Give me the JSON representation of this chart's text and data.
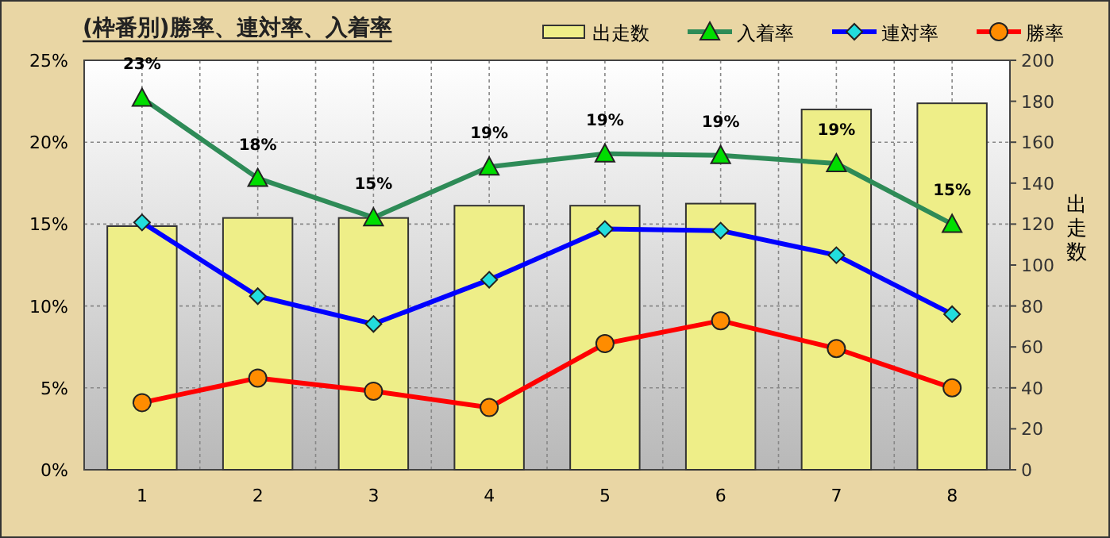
{
  "chart_data": {
    "type": "line",
    "title": "(枠番別)勝率、連対率、入着率",
    "y2label": "出走数",
    "categories": [
      "1",
      "2",
      "3",
      "4",
      "5",
      "6",
      "7",
      "8"
    ],
    "series": [
      {
        "name": "出走数",
        "type": "bar",
        "axis": "y2",
        "color": "#eeee88",
        "values": [
          119,
          123,
          123,
          129,
          129,
          130,
          176,
          179
        ]
      },
      {
        "name": "入着率",
        "color": "#2e8b57",
        "marker": "triangle",
        "values": [
          22.7,
          17.8,
          15.4,
          18.5,
          19.3,
          19.2,
          18.7,
          15.0
        ],
        "value_labels": [
          "23%",
          "18%",
          "15%",
          "19%",
          "19%",
          "19%",
          "19%",
          "15%"
        ]
      },
      {
        "name": "連対率",
        "color": "#0000ff",
        "marker": "diamond",
        "values": [
          15.1,
          10.6,
          8.9,
          11.6,
          14.7,
          14.6,
          13.1,
          9.5
        ]
      },
      {
        "name": "勝率",
        "color": "#ff0000",
        "marker": "circle",
        "values": [
          4.1,
          5.6,
          4.8,
          3.8,
          7.7,
          9.1,
          7.4,
          5.0
        ]
      }
    ],
    "ylim": [
      0,
      25
    ],
    "yticks": [
      {
        "value": 0,
        "label": "0%"
      },
      {
        "value": 5,
        "label": "5%"
      },
      {
        "value": 10,
        "label": "10%"
      },
      {
        "value": 15,
        "label": "15%"
      },
      {
        "value": 20,
        "label": "20%"
      },
      {
        "value": 25,
        "label": "25%"
      }
    ],
    "y2lim": [
      0,
      200
    ],
    "y2ticks": [
      0,
      20,
      40,
      60,
      80,
      100,
      120,
      140,
      160,
      180,
      200
    ],
    "grid": true,
    "legend": "top right"
  }
}
